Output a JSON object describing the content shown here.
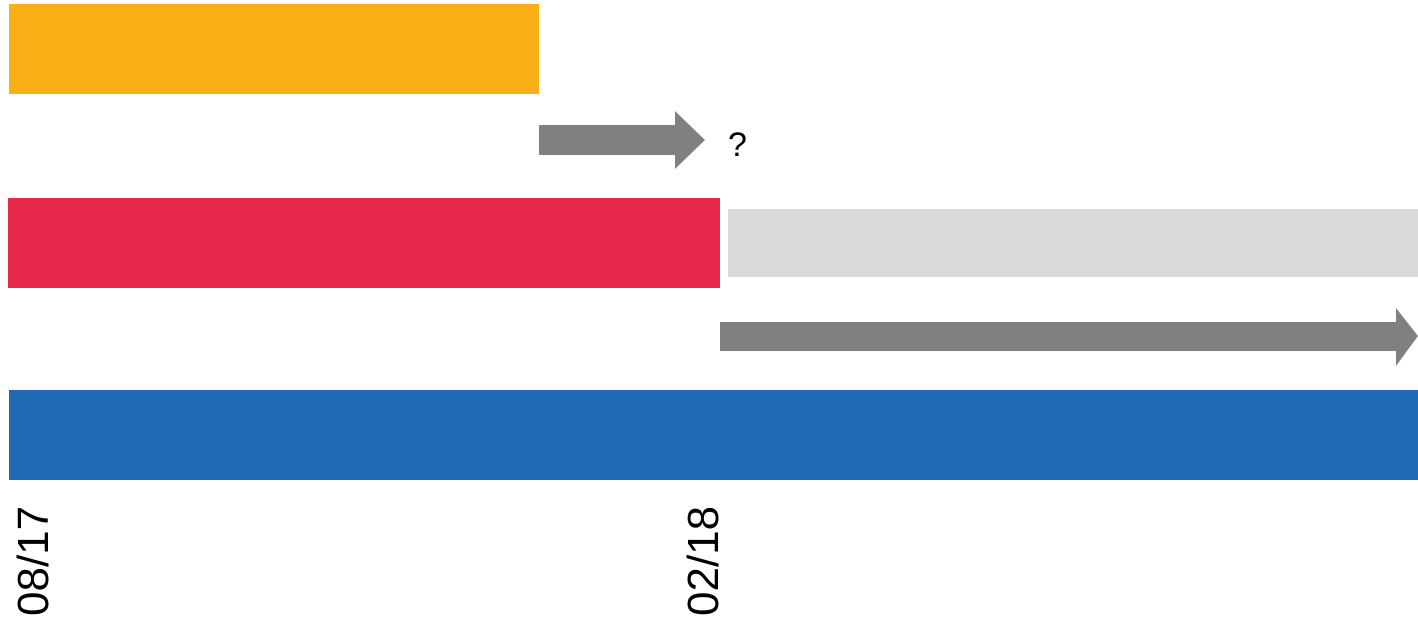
{
  "colors": {
    "background": "#ffffff",
    "orange_bar": "#f9b016",
    "red_bar": "#e8284a",
    "light_gray_bar": "#d9d9d9",
    "blue_bar": "#1f6ab3",
    "arrow": "#808080",
    "text": "#000000"
  },
  "timeline": {
    "start_label": "08/17",
    "mid_label": "02/18"
  },
  "annotation": {
    "question_mark": "?"
  },
  "icons": {
    "short_arrow": "arrow-right-icon",
    "long_arrow": "arrow-right-icon"
  }
}
